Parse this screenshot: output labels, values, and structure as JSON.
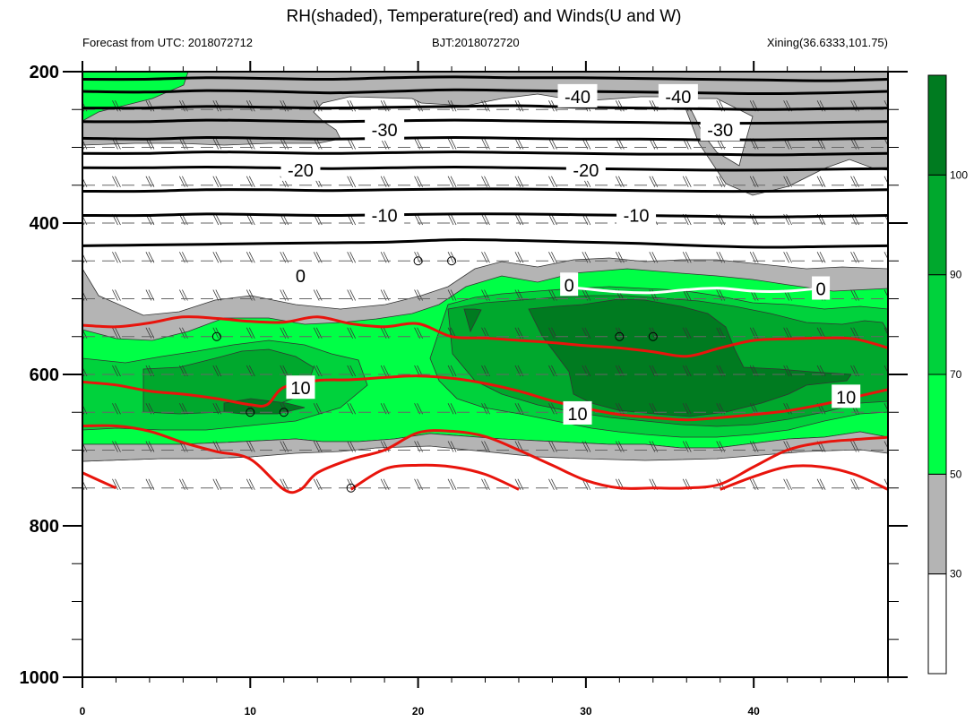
{
  "header": {
    "title": "RH(shaded), Temperature(red) and Winds(U and W)",
    "forecast": "Forecast from UTC: 2018072712",
    "bjt": "BJT:2018072720",
    "station": "Xining(36.6333,101.75)"
  },
  "chart_data": {
    "type": "contour",
    "x_ticks": [
      "0",
      "10",
      "20",
      "30",
      "40"
    ],
    "xlim": [
      0,
      48
    ],
    "y_ticks": [
      "200",
      "400",
      "600",
      "800",
      "1000"
    ],
    "ylim": [
      1000,
      200
    ],
    "y_minor_step": 50,
    "colorbar": {
      "levels": [
        "30",
        "50",
        "70",
        "90",
        "100"
      ],
      "colors": [
        "#ffffff",
        "#b4b4b4",
        "#00ff46",
        "#00d23c",
        "#00a82d",
        "#007b20"
      ]
    },
    "temperature_labels": [
      {
        "text": "-40",
        "x": 29.5,
        "y": 233
      },
      {
        "text": "-40",
        "x": 35.5,
        "y": 233
      },
      {
        "text": "-30",
        "x": 18,
        "y": 277
      },
      {
        "text": "-30",
        "x": 38,
        "y": 277
      },
      {
        "text": "-20",
        "x": 13,
        "y": 330
      },
      {
        "text": "-20",
        "x": 30,
        "y": 330
      },
      {
        "text": "-10",
        "x": 18,
        "y": 390
      },
      {
        "text": "-10",
        "x": 33,
        "y": 390
      },
      {
        "text": "0",
        "x": 13,
        "y": 470
      },
      {
        "text": "0",
        "x": 29,
        "y": 482
      },
      {
        "text": "0",
        "x": 44,
        "y": 487
      },
      {
        "text": "10",
        "x": 13,
        "y": 618
      },
      {
        "text": "10",
        "x": 29.5,
        "y": 652
      },
      {
        "text": "10",
        "x": 45.5,
        "y": 630
      }
    ],
    "black_isotherms": [
      {
        "y": [
          210,
          210,
          208,
          209,
          210,
          208,
          207,
          208,
          208,
          209,
          210,
          211,
          212,
          210
        ]
      },
      {
        "y": [
          226,
          227,
          225,
          226,
          228,
          226,
          224,
          225,
          226,
          227,
          228,
          229,
          228,
          226
        ]
      },
      {
        "y": [
          248,
          248,
          246,
          247,
          248,
          247,
          246,
          245,
          247,
          248,
          249,
          250,
          249,
          248
        ]
      },
      {
        "y": [
          266,
          266,
          264,
          265,
          266,
          265,
          264,
          265,
          266,
          267,
          268,
          268,
          267,
          266
        ]
      },
      {
        "y": [
          288,
          289,
          287,
          288,
          289,
          288,
          287,
          288,
          289,
          289,
          290,
          290,
          289,
          288
        ]
      },
      {
        "y": [
          308,
          308,
          306,
          307,
          308,
          307,
          306,
          307,
          308,
          309,
          309,
          310,
          309,
          308
        ]
      },
      {
        "y": [
          327,
          327,
          326,
          327,
          328,
          327,
          326,
          327,
          328,
          329,
          330,
          330,
          329,
          328
        ]
      },
      {
        "y": [
          358,
          358,
          356,
          356,
          357,
          356,
          355,
          355,
          356,
          357,
          358,
          358,
          357,
          356
        ]
      },
      {
        "y": [
          390,
          390,
          388,
          389,
          390,
          389,
          388,
          388,
          389,
          390,
          391,
          392,
          391,
          390
        ]
      },
      {
        "y": [
          430,
          429,
          428,
          427,
          426,
          425,
          422,
          423,
          425,
          427,
          430,
          432,
          431,
          430
        ]
      }
    ],
    "zero_line": {
      "x": [
        28.5,
        30,
        32,
        34,
        36,
        38,
        40,
        42,
        44
      ],
      "y": [
        484,
        487,
        491,
        492,
        488,
        486,
        490,
        490,
        486
      ]
    },
    "red_isotherms": [
      {
        "x": [
          0,
          2,
          4,
          6,
          8,
          10,
          12,
          14,
          16,
          18,
          20,
          22,
          24,
          26,
          28,
          30,
          32,
          34,
          36,
          38,
          40,
          42,
          44,
          46,
          48
        ],
        "y": [
          535,
          537,
          532,
          524,
          526,
          530,
          531,
          524,
          533,
          537,
          533,
          550,
          552,
          555,
          558,
          562,
          565,
          570,
          576,
          565,
          555,
          553,
          552,
          553,
          565
        ]
      },
      {
        "x": [
          0,
          2,
          4,
          6,
          8,
          10,
          11,
          12,
          14,
          16,
          18,
          20,
          22,
          24,
          26,
          28,
          30,
          32,
          34,
          36,
          38,
          40,
          42,
          44,
          46,
          48
        ],
        "y": [
          610,
          614,
          622,
          626,
          632,
          640,
          640,
          617,
          608,
          607,
          604,
          602,
          605,
          612,
          622,
          635,
          645,
          653,
          657,
          660,
          657,
          653,
          648,
          640,
          630,
          620
        ]
      },
      {
        "x": [
          0,
          2,
          4,
          6,
          8,
          10,
          12,
          13,
          14,
          16,
          18,
          20,
          22,
          24,
          26,
          28,
          30,
          32,
          34,
          36,
          38,
          40,
          42,
          44,
          46,
          48
        ],
        "y": [
          668,
          668,
          675,
          690,
          702,
          712,
          752,
          752,
          730,
          712,
          700,
          677,
          675,
          682,
          700,
          720,
          740,
          750,
          750,
          750,
          745,
          722,
          700,
          690,
          686,
          683
        ]
      },
      {
        "x": [
          0,
          2
        ],
        "y": [
          730,
          750
        ]
      },
      {
        "x": [
          16,
          18,
          20,
          22,
          24,
          26
        ],
        "y": [
          752,
          725,
          720,
          722,
          732,
          752
        ]
      },
      {
        "x": [
          38,
          40,
          42,
          44,
          46,
          48
        ],
        "y": [
          752,
          735,
          722,
          722,
          732,
          752
        ]
      }
    ],
    "calm_points": [
      {
        "x": 8,
        "y": 550
      },
      {
        "x": 10,
        "y": 650
      },
      {
        "x": 12,
        "y": 650
      },
      {
        "x": 20,
        "y": 450
      },
      {
        "x": 22,
        "y": 450
      },
      {
        "x": 16,
        "y": 750
      },
      {
        "x": 32,
        "y": 550
      },
      {
        "x": 34,
        "y": 550
      }
    ]
  }
}
